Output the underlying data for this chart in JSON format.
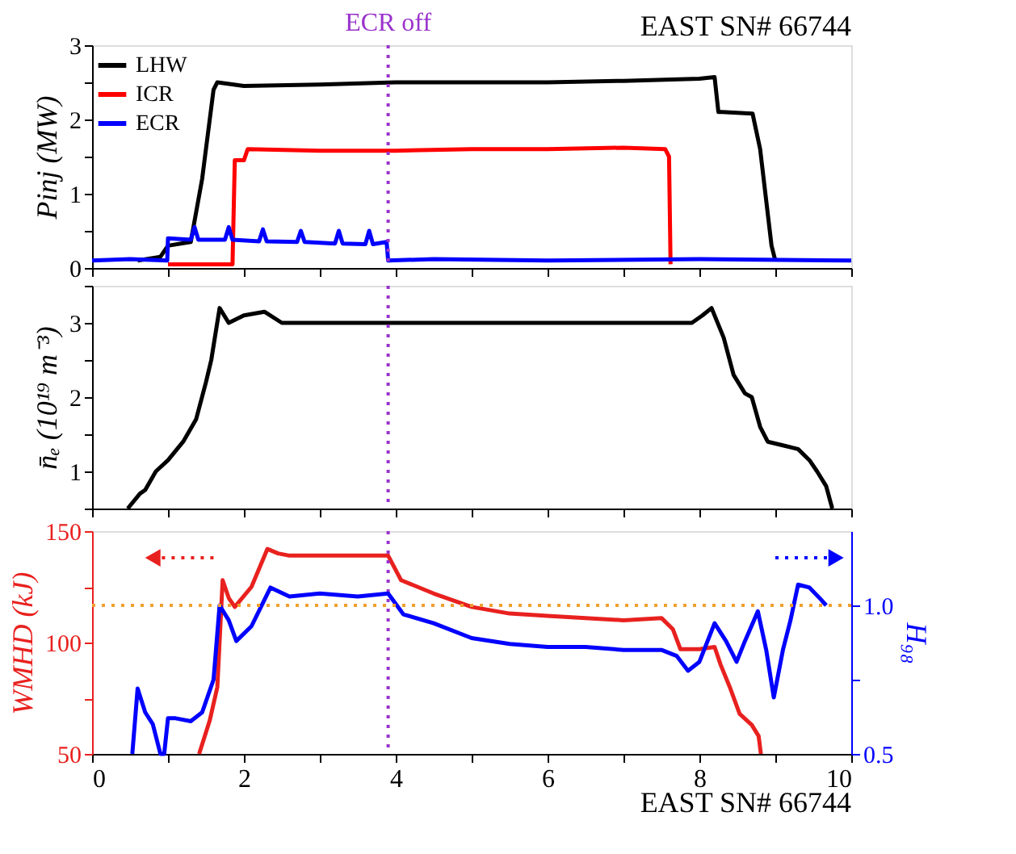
{
  "chart_data": [
    {
      "type": "line",
      "ylabel": "Pinj (MW)",
      "xlim": [
        0,
        10
      ],
      "ylim": [
        0,
        3
      ],
      "xticks": [
        0,
        {
          "value": 1,
          "label": null
        },
        2,
        {
          "value": 3,
          "label": null
        },
        4,
        {
          "value": 5,
          "label": null
        },
        6,
        {
          "value": 7,
          "label": null
        },
        8,
        {
          "value": 9,
          "label": null
        },
        10
      ],
      "yticks": [
        0,
        {
          "value": 0.5,
          "label": null
        },
        1,
        {
          "value": 1.5,
          "label": null
        },
        2,
        {
          "value": 2.5,
          "label": null
        },
        3
      ],
      "tick_labels": "y",
      "legend": "top left",
      "grid": false,
      "ref_lines": [
        {
          "axis": "x",
          "value": 3.9,
          "label": "ECR off",
          "color": "#9933cc",
          "line_style": "dotted"
        }
      ],
      "annotations": [
        "EAST SN# 66744"
      ],
      "series": [
        {
          "name": "LHW",
          "color": "#000000",
          "x": [
            0.6,
            0.9,
            1.0,
            1.3,
            1.45,
            1.6,
            1.65,
            2,
            3,
            4,
            5,
            6,
            7,
            8,
            8.2,
            8.25,
            8.3,
            8.7,
            8.8,
            8.95,
            9.0
          ],
          "values": [
            0.1,
            0.15,
            0.3,
            0.35,
            1.2,
            2.4,
            2.5,
            2.45,
            2.47,
            2.5,
            2.5,
            2.5,
            2.52,
            2.55,
            2.57,
            2.1,
            2.1,
            2.08,
            1.6,
            0.3,
            0.1
          ]
        },
        {
          "name": "ICR",
          "color": "#ff0000",
          "x": [
            1.0,
            1.85,
            1.88,
            2.0,
            2.05,
            3,
            4,
            5,
            6,
            7,
            7.55,
            7.6,
            7.62
          ],
          "values": [
            0.05,
            0.05,
            1.45,
            1.45,
            1.6,
            1.58,
            1.58,
            1.6,
            1.6,
            1.62,
            1.6,
            1.5,
            0.05
          ]
        },
        {
          "name": "ECR",
          "color": "#0000ff",
          "x": [
            0,
            0.5,
            0.99,
            1.0,
            1.3,
            1.35,
            1.4,
            1.75,
            1.8,
            1.85,
            2.2,
            2.25,
            2.3,
            2.7,
            2.75,
            2.8,
            3.2,
            3.25,
            3.3,
            3.6,
            3.65,
            3.7,
            3.88,
            3.9,
            4.5,
            6,
            8,
            10
          ],
          "values": [
            0.1,
            0.12,
            0.1,
            0.4,
            0.38,
            0.55,
            0.38,
            0.38,
            0.55,
            0.38,
            0.36,
            0.52,
            0.36,
            0.35,
            0.5,
            0.35,
            0.33,
            0.5,
            0.33,
            0.32,
            0.5,
            0.32,
            0.35,
            0.1,
            0.12,
            0.1,
            0.12,
            0.1
          ]
        }
      ]
    },
    {
      "type": "line",
      "ylabel": "n̄ₑ (10¹⁹ m⁻³)",
      "xlim": [
        0,
        10
      ],
      "ylim": [
        0.5,
        3.5
      ],
      "xticks": [
        0,
        {
          "value": 1,
          "label": null
        },
        2,
        {
          "value": 3,
          "label": null
        },
        4,
        {
          "value": 5,
          "label": null
        },
        6,
        {
          "value": 7,
          "label": null
        },
        8,
        {
          "value": 9,
          "label": null
        },
        10
      ],
      "yticks": [
        {
          "value": 0.5,
          "label": null
        },
        1,
        {
          "value": 1.5,
          "label": null
        },
        2,
        {
          "value": 2.5,
          "label": null
        },
        3,
        {
          "value": 3.5,
          "label": null
        }
      ],
      "tick_labels": "y",
      "grid": false,
      "ref_lines": [
        {
          "axis": "x",
          "value": 3.9,
          "color": "#9933cc",
          "line_style": "dotted"
        }
      ],
      "series": [
        {
          "color": "#000000",
          "x": [
            0.47,
            0.63,
            0.7,
            0.84,
            1.0,
            1.2,
            1.37,
            1.5,
            1.57,
            1.68,
            1.8,
            2.0,
            2.27,
            2.5,
            3,
            4,
            5,
            6,
            7,
            7.9,
            8.04,
            8.16,
            8.32,
            8.45,
            8.6,
            8.69,
            8.8,
            8.9,
            9.1,
            9.3,
            9.45,
            9.55,
            9.67,
            9.75
          ],
          "values": [
            0.5,
            0.7,
            0.75,
            1.0,
            1.15,
            1.4,
            1.7,
            2.2,
            2.5,
            3.2,
            3.0,
            3.1,
            3.15,
            3.0,
            3.0,
            3.0,
            3.0,
            3.0,
            3.0,
            3.0,
            3.1,
            3.2,
            2.8,
            2.3,
            2.05,
            2.0,
            1.6,
            1.4,
            1.35,
            1.3,
            1.15,
            1.0,
            0.8,
            0.5
          ]
        }
      ]
    },
    {
      "type": "line",
      "ylabel": "WMHD (kJ)",
      "y2label": "H₉₈",
      "xlim": [
        0,
        10
      ],
      "ylim": [
        50,
        150
      ],
      "y2lim": [
        0.5,
        1.25
      ],
      "xticks": [
        0,
        {
          "value": 1,
          "label": null
        },
        2,
        {
          "value": 3,
          "label": null
        },
        4,
        {
          "value": 5,
          "label": null
        },
        6,
        {
          "value": 7,
          "label": null
        },
        8,
        {
          "value": 9,
          "label": null
        },
        10
      ],
      "yticks": [
        50,
        {
          "value": 75,
          "label": null
        },
        100,
        {
          "value": 125,
          "label": null
        },
        150
      ],
      "y2ticks": [
        {
          "value": 0.5,
          "label": "0.5"
        },
        {
          "value": 0.75,
          "label": null
        },
        {
          "value": 1.0,
          "label": "1.0"
        }
      ],
      "grid": false,
      "legend": false,
      "ref_lines": [
        {
          "axis": "x",
          "value": 3.9,
          "color": "#9933cc",
          "line_style": "dotted"
        },
        {
          "axis": "y2",
          "value": 1.0,
          "color": "#f0a030",
          "line_style": "dotted"
        }
      ],
      "annotations": [
        "EAST SN# 66744"
      ],
      "series": [
        {
          "color": "#e8211f",
          "x": [
            1.41,
            1.55,
            1.65,
            1.72,
            1.8,
            1.88,
            2.1,
            2.31,
            2.45,
            2.6,
            3.0,
            3.5,
            3.9,
            4.07,
            4.5,
            5.0,
            5.5,
            6.0,
            6.5,
            7.0,
            7.5,
            7.65,
            7.75,
            8.0,
            8.2,
            8.28,
            8.4,
            8.53,
            8.69,
            8.78,
            8.81
          ],
          "values": [
            50,
            65,
            80,
            128,
            120,
            116,
            125,
            142,
            140,
            139,
            139,
            139,
            139,
            128,
            122,
            116,
            113,
            112,
            111,
            110,
            111,
            106,
            97,
            97,
            98,
            90,
            80,
            68,
            63,
            58,
            50
          ]
        },
        {
          "color": "#0000ff",
          "axis": "y2",
          "x": [
            0.53,
            0.6,
            0.7,
            0.8,
            0.9,
            0.95,
            1.0,
            1.1,
            1.3,
            1.45,
            1.6,
            1.68,
            1.8,
            1.9,
            2.1,
            2.35,
            2.6,
            3.0,
            3.5,
            3.9,
            4.1,
            4.5,
            5.0,
            5.5,
            6.0,
            6.5,
            7.0,
            7.5,
            7.7,
            7.85,
            8.0,
            8.2,
            8.35,
            8.49,
            8.6,
            8.77,
            8.88,
            8.98,
            9.1,
            9.2,
            9.3,
            9.45,
            9.6,
            9.67
          ],
          "values": [
            0.5,
            0.72,
            0.64,
            0.6,
            0.5,
            0.5,
            0.62,
            0.62,
            0.61,
            0.64,
            0.75,
            1.0,
            0.95,
            0.88,
            0.93,
            1.06,
            1.03,
            1.04,
            1.03,
            1.04,
            0.97,
            0.94,
            0.89,
            0.87,
            0.86,
            0.86,
            0.85,
            0.85,
            0.83,
            0.78,
            0.81,
            0.94,
            0.88,
            0.81,
            0.88,
            0.98,
            0.85,
            0.69,
            0.85,
            0.95,
            1.07,
            1.06,
            1.02,
            1.0
          ]
        }
      ]
    }
  ]
}
